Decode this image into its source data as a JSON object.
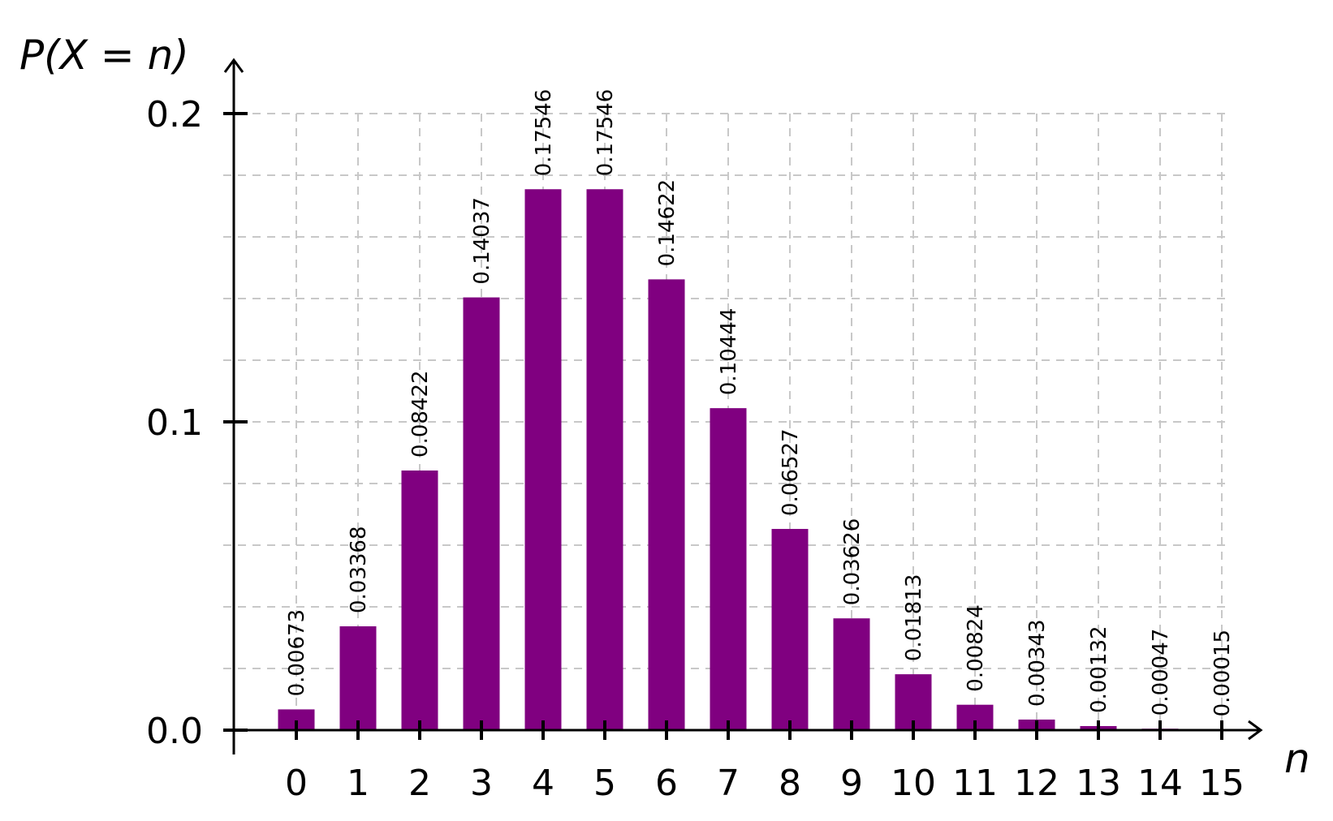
{
  "chart_data": {
    "type": "bar",
    "ylabel": "P(X = n)",
    "xlabel": "n",
    "categories": [
      "0",
      "1",
      "2",
      "3",
      "4",
      "5",
      "6",
      "7",
      "8",
      "9",
      "10",
      "11",
      "12",
      "13",
      "14",
      "15"
    ],
    "values": [
      0.00673,
      0.03368,
      0.08422,
      0.14037,
      0.17546,
      0.17546,
      0.14622,
      0.10444,
      0.06527,
      0.03626,
      0.01813,
      0.00824,
      0.00343,
      0.00132,
      0.00047,
      0.00015
    ],
    "value_labels": [
      "0.00673",
      "0.03368",
      "0.08422",
      "0.14037",
      "0.17546",
      "0.17546",
      "0.14622",
      "0.10444",
      "0.06527",
      "0.03626",
      "0.01813",
      "0.00824",
      "0.00343",
      "0.00132",
      "0.00047",
      "0.00015"
    ],
    "y_ticks": [
      "0.0",
      "0.1",
      "0.2"
    ],
    "ylim": [
      0,
      0.2
    ],
    "grid": true,
    "bar_color": "#800080"
  }
}
